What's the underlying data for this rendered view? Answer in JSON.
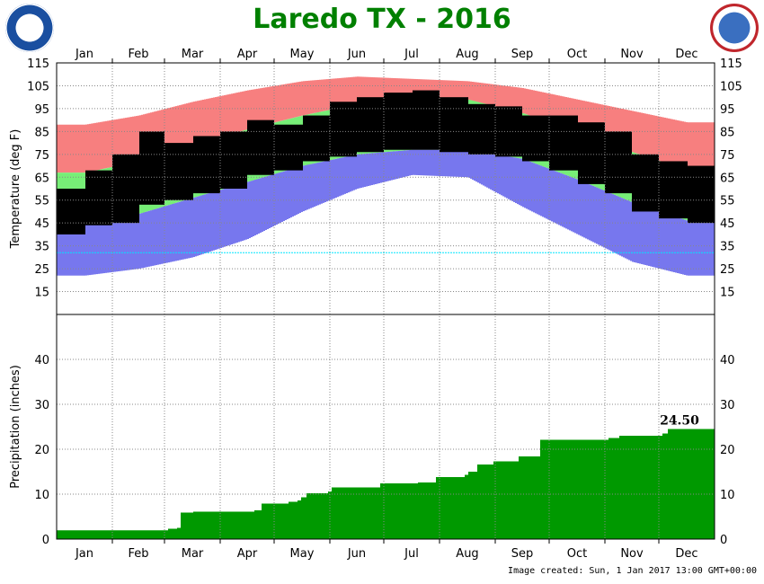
{
  "chart_data": [
    {
      "type": "bar",
      "title": "Laredo TX - 2016",
      "ylabel": "Temperature (deg F)",
      "ylim": [
        5,
        115
      ],
      "yticks": [
        15,
        25,
        35,
        45,
        55,
        65,
        75,
        85,
        95,
        105,
        115
      ],
      "month_labels": [
        "Jan",
        "Feb",
        "Mar",
        "Apr",
        "May",
        "Jun",
        "Jul",
        "Aug",
        "Sep",
        "Oct",
        "Nov",
        "Dec"
      ],
      "grid": true,
      "reference_line": {
        "value": 32,
        "color": "#00e5ff"
      },
      "colors": {
        "record_high": "#f77f7f",
        "normal": "#77ee77",
        "record_low": "#7777ee",
        "observed": "#000000"
      },
      "monthly": {
        "record_high": [
          88,
          92,
          98,
          103,
          107,
          109,
          108,
          107,
          104,
          99,
          94,
          89
        ],
        "normal_high": [
          67,
          72,
          79,
          86,
          92,
          97,
          99,
          99,
          93,
          85,
          76,
          68
        ],
        "normal_low": [
          45,
          49,
          56,
          63,
          70,
          75,
          77,
          77,
          73,
          64,
          54,
          46
        ],
        "record_low": [
          22,
          25,
          30,
          38,
          50,
          60,
          66,
          65,
          52,
          40,
          28,
          22
        ]
      },
      "half_monthly_observed": {
        "high": [
          60,
          68,
          75,
          85,
          80,
          83,
          85,
          90,
          88,
          92,
          98,
          100,
          102,
          103,
          100,
          97,
          96,
          92,
          92,
          89,
          85,
          75,
          72,
          70
        ],
        "low": [
          40,
          44,
          45,
          53,
          55,
          58,
          60,
          66,
          68,
          72,
          74,
          76,
          77,
          77,
          76,
          75,
          74,
          72,
          68,
          62,
          58,
          50,
          47,
          45
        ]
      }
    },
    {
      "type": "area",
      "ylabel": "Precipitation (inches)",
      "ylim": [
        0,
        50
      ],
      "yticks": [
        0,
        10,
        20,
        30,
        40
      ],
      "color": "#009900",
      "annotation": "24.50",
      "cumulative_steps": [
        [
          "01-01",
          1.95
        ],
        [
          "03-03",
          2.3
        ],
        [
          "03-08",
          2.5
        ],
        [
          "03-10",
          5.9
        ],
        [
          "03-17",
          6.1
        ],
        [
          "04-20",
          6.4
        ],
        [
          "04-24",
          7.9
        ],
        [
          "05-09",
          8.3
        ],
        [
          "05-14",
          8.6
        ],
        [
          "05-16",
          9.3
        ],
        [
          "05-19",
          10.2
        ],
        [
          "05-31",
          10.6
        ],
        [
          "06-02",
          11.5
        ],
        [
          "06-29",
          12.4
        ],
        [
          "07-20",
          12.6
        ],
        [
          "07-30",
          13.8
        ],
        [
          "08-15",
          14.3
        ],
        [
          "08-17",
          15.0
        ],
        [
          "08-22",
          16.6
        ],
        [
          "08-31",
          17.3
        ],
        [
          "09-14",
          18.4
        ],
        [
          "09-26",
          22.1
        ],
        [
          "11-03",
          22.5
        ],
        [
          "11-09",
          23.0
        ],
        [
          "12-03",
          23.5
        ],
        [
          "12-06",
          24.5
        ]
      ]
    }
  ],
  "footer": "Image created: Sun, 1 Jan 2017 13:00 GMT+00:00",
  "logos": {
    "left": "NOAA",
    "right": "NATIONAL WEATHER SERVICE"
  }
}
